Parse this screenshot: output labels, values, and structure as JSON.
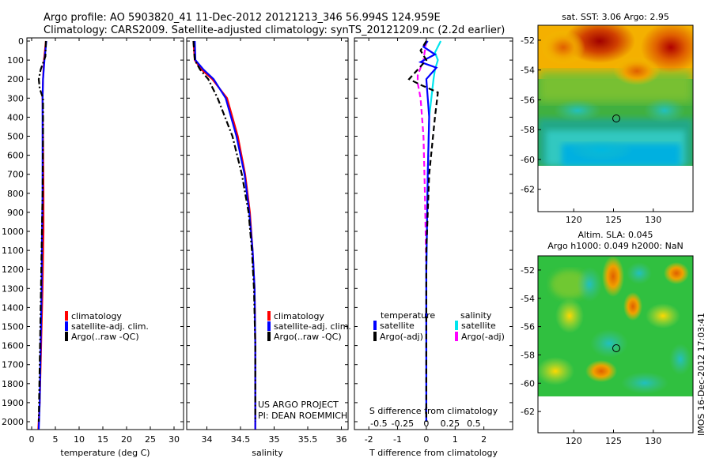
{
  "header": {
    "line1": "Argo profile: AO 5903820_41 11-Dec-2012 20121213_346 56.994S 124.959E",
    "line2": "Climatology: CARS2009. Satellite-adjusted climatology: synTS_20121209.nc (2.2d earlier)"
  },
  "credit": {
    "project": "US ARGO PROJECT",
    "pi": "PI: DEAN ROEMMICH",
    "stamp": "IMOS 16-Dec-2012 17:03:41"
  },
  "colors": {
    "climatology": "#ff0000",
    "satellite": "#0000ff",
    "argo": "#000000",
    "sal_satellite": "#00e5ee",
    "sal_argo": "#ff00ff"
  },
  "chart_data": [
    {
      "id": "temperature",
      "type": "line",
      "xlabel": "temperature (deg C)",
      "ylabel": "",
      "xlim": [
        -1,
        32
      ],
      "ylim": [
        2060,
        0
      ],
      "xticks": [
        0,
        5,
        10,
        15,
        20,
        25,
        30
      ],
      "xticklabels": [
        "0",
        "5",
        "10",
        "15",
        "20",
        "25",
        "30"
      ],
      "yticks": [
        0,
        100,
        200,
        300,
        400,
        500,
        600,
        700,
        800,
        900,
        1000,
        1100,
        1200,
        1300,
        1400,
        1500,
        1600,
        1700,
        1800,
        1900,
        2000
      ],
      "yticklabels": [
        "0",
        "100",
        "200",
        "300",
        "400",
        "500",
        "600",
        "700",
        "800",
        "900",
        "1000",
        "1100",
        "1200",
        "1300",
        "1400",
        "1500",
        "1600",
        "1700",
        "1800",
        "1900",
        "2000"
      ],
      "legend": [
        "climatology",
        "satellite-adj. clim.",
        "Argo(..raw -QC)"
      ],
      "series": [
        {
          "name": "climatology",
          "style": "solid",
          "x": [
            3.0,
            2.6,
            2.4,
            2.3,
            2.4,
            2.5,
            2.5,
            2.3,
            2.0,
            1.7,
            1.4
          ],
          "y": [
            0,
            100,
            200,
            300,
            500,
            800,
            1000,
            1300,
            1600,
            1900,
            2040
          ]
        },
        {
          "name": "satellite-adj. clim.",
          "style": "solid",
          "x": [
            3.1,
            2.7,
            2.4,
            2.3,
            2.3,
            2.3,
            2.2,
            2.1,
            1.9,
            1.7,
            1.5
          ],
          "y": [
            0,
            100,
            200,
            300,
            500,
            800,
            1000,
            1300,
            1600,
            1900,
            2040
          ]
        },
        {
          "name": "Argo(..raw -QC)",
          "style": "dashdot",
          "x": [
            3.0,
            2.9,
            1.9,
            1.5,
            1.7,
            2.4,
            2.4,
            2.3,
            2.1,
            1.9,
            1.7,
            1.5
          ],
          "y": [
            0,
            80,
            150,
            200,
            250,
            300,
            500,
            800,
            1100,
            1400,
            1700,
            2000
          ]
        }
      ]
    },
    {
      "id": "salinity",
      "type": "line",
      "xlabel": "salinity",
      "ylabel": "",
      "xlim": [
        33.7,
        36.1
      ],
      "ylim": [
        2060,
        0
      ],
      "xticks": [
        34,
        34.5,
        35,
        35.5,
        36
      ],
      "xticklabels": [
        "34",
        "34.5",
        "35",
        "35.5",
        "36"
      ],
      "legend": [
        "climatology",
        "satellite-adj. clim.",
        "Argo(..raw -QC)"
      ],
      "series": [
        {
          "name": "climatology",
          "style": "solid",
          "x": [
            33.8,
            33.82,
            33.92,
            34.08,
            34.3,
            34.46,
            34.57,
            34.64,
            34.68,
            34.71,
            34.72,
            34.72
          ],
          "y": [
            0,
            100,
            150,
            200,
            300,
            500,
            700,
            900,
            1100,
            1300,
            1600,
            2040
          ]
        },
        {
          "name": "satellite-adj. clim.",
          "style": "solid",
          "x": [
            33.82,
            33.83,
            33.95,
            34.1,
            34.28,
            34.44,
            34.56,
            34.63,
            34.68,
            34.71,
            34.72,
            34.72
          ],
          "y": [
            0,
            100,
            150,
            200,
            300,
            500,
            700,
            900,
            1100,
            1300,
            1600,
            2040
          ]
        },
        {
          "name": "Argo(..raw -QC)",
          "style": "dashdot",
          "x": [
            33.8,
            33.82,
            33.9,
            34.02,
            34.16,
            34.38,
            34.52,
            34.62,
            34.67,
            34.7,
            34.72,
            34.72
          ],
          "y": [
            0,
            100,
            150,
            200,
            300,
            500,
            700,
            900,
            1100,
            1300,
            1600,
            2000
          ]
        }
      ]
    },
    {
      "id": "differences",
      "type": "line",
      "xlabel": "T difference from climatology",
      "xlabel_top": "S difference from climatology",
      "ylabel": "",
      "xlim": [
        -2.5,
        3.0
      ],
      "ylim": [
        2060,
        0
      ],
      "xticks": [
        -2,
        -1,
        0,
        1,
        2
      ],
      "xticklabels": [
        "-2",
        "-1",
        "0",
        "1",
        "2"
      ],
      "sticks": [
        -0.5,
        -0.25,
        0,
        0.25,
        0.5
      ],
      "sticklabels": [
        "-0.5",
        "-0.25",
        "0",
        "0.25",
        "0.5"
      ],
      "legend_headers": [
        "temperature",
        "salinity"
      ],
      "legend": [
        "satellite",
        "Argo(-adj)",
        "satellite",
        "Argo(-adj)"
      ],
      "series": [
        {
          "name": "satellite",
          "quantity": "temperature",
          "style": "solid",
          "x": [
            0.05,
            -0.1,
            0.3,
            -0.2,
            0.35,
            0.0,
            0.1,
            0.05,
            0.0,
            0.0
          ],
          "y": [
            0,
            30,
            70,
            110,
            140,
            200,
            400,
            700,
            1200,
            2000
          ]
        },
        {
          "name": "Argo(-adj)",
          "quantity": "temperature",
          "style": "dashed",
          "x": [
            0.0,
            -0.2,
            0.0,
            -0.6,
            -0.2,
            0.4,
            0.3,
            0.1,
            0.0,
            0.0
          ],
          "y": [
            0,
            50,
            100,
            200,
            230,
            270,
            400,
            700,
            1100,
            2000
          ]
        },
        {
          "name": "satellite",
          "quantity": "salinity",
          "style": "solid",
          "x": [
            0.5,
            0.3,
            0.4,
            0.3,
            0.25,
            0.1,
            0.05,
            0.0,
            0.0
          ],
          "y": [
            0,
            60,
            100,
            150,
            200,
            400,
            700,
            1200,
            2000
          ]
        },
        {
          "name": "Argo(-adj)",
          "quantity": "salinity",
          "style": "dashed",
          "x": [
            0.0,
            -0.1,
            -0.3,
            -0.3,
            -0.2,
            -0.1,
            -0.05,
            0.0,
            0.0
          ],
          "y": [
            0,
            100,
            180,
            220,
            300,
            500,
            800,
            1200,
            2000
          ]
        }
      ]
    },
    {
      "id": "sst_map",
      "type": "heatmap",
      "title": "sat. SST: 3.06 Argo: 2.95",
      "xticklabels": [
        "120",
        "125",
        "130"
      ],
      "yticklabels": [
        "-52",
        "-54",
        "-56",
        "-58",
        "-60",
        "-62"
      ],
      "xlim": [
        115.5,
        135
      ],
      "ylim": [
        -63.5,
        -51
      ],
      "marker": {
        "lon": 124.959,
        "lat": -56.994
      }
    },
    {
      "id": "sla_map",
      "type": "heatmap",
      "title": "Altim. SLA: 0.045",
      "subtitle": "Argo h1000: 0.049 h2000: NaN",
      "xticklabels": [
        "120",
        "125",
        "130"
      ],
      "yticklabels": [
        "-52",
        "-54",
        "-56",
        "-58",
        "-60",
        "-62"
      ],
      "xlim": [
        115.5,
        135
      ],
      "ylim": [
        -63.5,
        -51
      ],
      "marker": {
        "lon": 124.959,
        "lat": -56.994
      }
    }
  ]
}
